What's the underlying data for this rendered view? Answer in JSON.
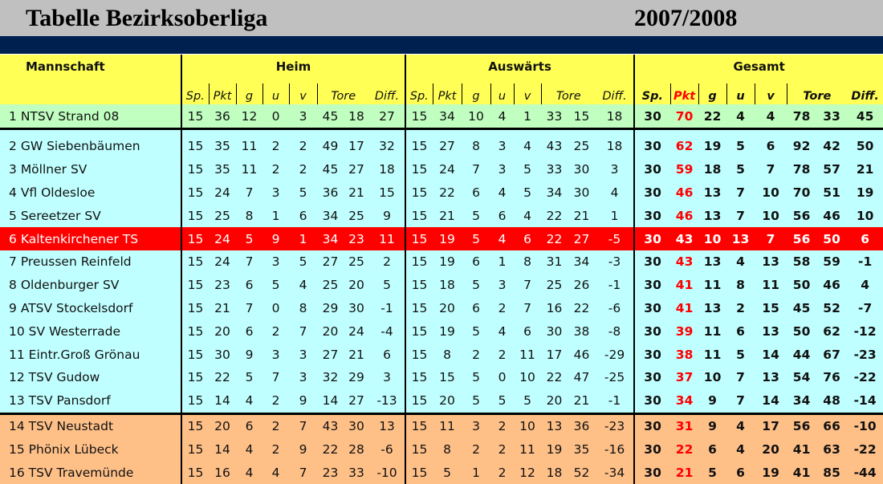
{
  "title": "Tabelle Bezirksoberliga",
  "season": "2007/2008",
  "colors": {
    "promotion": "#c0ffc0",
    "middle": "#c0ffff",
    "highlight": "#ff0000",
    "relegation": "#ffc088",
    "header": "#ffff55",
    "points": "#ff0000"
  },
  "header": {
    "team": "Mannschaft",
    "home": "Heim",
    "away": "Auswärts",
    "total": "Gesamt",
    "sub": [
      "Sp.",
      "Pkt",
      "g",
      "u",
      "v",
      "Tore",
      "Diff."
    ]
  },
  "rows": [
    {
      "rank": "1",
      "team": "NTSV Strand 08",
      "zone": "promotion",
      "home": [
        "15",
        "36",
        "12",
        "0",
        "3",
        "45",
        "18",
        "27"
      ],
      "away": [
        "15",
        "34",
        "10",
        "4",
        "1",
        "33",
        "15",
        "18"
      ],
      "total": [
        "30",
        "70",
        "22",
        "4",
        "4",
        "78",
        "33",
        "45"
      ]
    },
    {
      "rank": "2",
      "team": "GW Siebenbäumen",
      "zone": "middle",
      "home": [
        "15",
        "35",
        "11",
        "2",
        "2",
        "49",
        "17",
        "32"
      ],
      "away": [
        "15",
        "27",
        "8",
        "3",
        "4",
        "43",
        "25",
        "18"
      ],
      "total": [
        "30",
        "62",
        "19",
        "5",
        "6",
        "92",
        "42",
        "50"
      ]
    },
    {
      "rank": "3",
      "team": "Möllner SV",
      "zone": "middle",
      "home": [
        "15",
        "35",
        "11",
        "2",
        "2",
        "45",
        "27",
        "18"
      ],
      "away": [
        "15",
        "24",
        "7",
        "3",
        "5",
        "33",
        "30",
        "3"
      ],
      "total": [
        "30",
        "59",
        "18",
        "5",
        "7",
        "78",
        "57",
        "21"
      ]
    },
    {
      "rank": "4",
      "team": "Vfl Oldesloe",
      "zone": "middle",
      "home": [
        "15",
        "24",
        "7",
        "3",
        "5",
        "36",
        "21",
        "15"
      ],
      "away": [
        "15",
        "22",
        "6",
        "4",
        "5",
        "34",
        "30",
        "4"
      ],
      "total": [
        "30",
        "46",
        "13",
        "7",
        "10",
        "70",
        "51",
        "19"
      ]
    },
    {
      "rank": "5",
      "team": "Sereetzer SV",
      "zone": "middle",
      "home": [
        "15",
        "25",
        "8",
        "1",
        "6",
        "34",
        "25",
        "9"
      ],
      "away": [
        "15",
        "21",
        "5",
        "6",
        "4",
        "22",
        "21",
        "1"
      ],
      "total": [
        "30",
        "46",
        "13",
        "7",
        "10",
        "56",
        "46",
        "10"
      ]
    },
    {
      "rank": "6",
      "team": "Kaltenkirchener TS",
      "zone": "highlight",
      "home": [
        "15",
        "24",
        "5",
        "9",
        "1",
        "34",
        "23",
        "11"
      ],
      "away": [
        "15",
        "19",
        "5",
        "4",
        "6",
        "22",
        "27",
        "-5"
      ],
      "total": [
        "30",
        "43",
        "10",
        "13",
        "7",
        "56",
        "50",
        "6"
      ]
    },
    {
      "rank": "7",
      "team": "Preussen Reinfeld",
      "zone": "middle",
      "home": [
        "15",
        "24",
        "7",
        "3",
        "5",
        "27",
        "25",
        "2"
      ],
      "away": [
        "15",
        "19",
        "6",
        "1",
        "8",
        "31",
        "34",
        "-3"
      ],
      "total": [
        "30",
        "43",
        "13",
        "4",
        "13",
        "58",
        "59",
        "-1"
      ]
    },
    {
      "rank": "8",
      "team": "Oldenburger SV",
      "zone": "middle",
      "home": [
        "15",
        "23",
        "6",
        "5",
        "4",
        "25",
        "20",
        "5"
      ],
      "away": [
        "15",
        "18",
        "5",
        "3",
        "7",
        "25",
        "26",
        "-1"
      ],
      "total": [
        "30",
        "41",
        "11",
        "8",
        "11",
        "50",
        "46",
        "4"
      ]
    },
    {
      "rank": "9",
      "team": "ATSV Stockelsdorf",
      "zone": "middle",
      "home": [
        "15",
        "21",
        "7",
        "0",
        "8",
        "29",
        "30",
        "-1"
      ],
      "away": [
        "15",
        "20",
        "6",
        "2",
        "7",
        "16",
        "22",
        "-6"
      ],
      "total": [
        "30",
        "41",
        "13",
        "2",
        "15",
        "45",
        "52",
        "-7"
      ]
    },
    {
      "rank": "10",
      "team": "SV Westerrade",
      "zone": "middle",
      "home": [
        "15",
        "20",
        "6",
        "2",
        "7",
        "20",
        "24",
        "-4"
      ],
      "away": [
        "15",
        "19",
        "5",
        "4",
        "6",
        "30",
        "38",
        "-8"
      ],
      "total": [
        "30",
        "39",
        "11",
        "6",
        "13",
        "50",
        "62",
        "-12"
      ]
    },
    {
      "rank": "11",
      "team": "Eintr.Groß Grönau",
      "zone": "middle",
      "home": [
        "15",
        "30",
        "9",
        "3",
        "3",
        "27",
        "21",
        "6"
      ],
      "away": [
        "15",
        "8",
        "2",
        "2",
        "11",
        "17",
        "46",
        "-29"
      ],
      "total": [
        "30",
        "38",
        "11",
        "5",
        "14",
        "44",
        "67",
        "-23"
      ]
    },
    {
      "rank": "12",
      "team": "TSV Gudow",
      "zone": "middle",
      "home": [
        "15",
        "22",
        "5",
        "7",
        "3",
        "32",
        "29",
        "3"
      ],
      "away": [
        "15",
        "15",
        "5",
        "0",
        "10",
        "22",
        "47",
        "-25"
      ],
      "total": [
        "30",
        "37",
        "10",
        "7",
        "13",
        "54",
        "76",
        "-22"
      ]
    },
    {
      "rank": "13",
      "team": "TSV Pansdorf",
      "zone": "middle",
      "home": [
        "15",
        "14",
        "4",
        "2",
        "9",
        "14",
        "27",
        "-13"
      ],
      "away": [
        "15",
        "20",
        "5",
        "5",
        "5",
        "20",
        "21",
        "-1"
      ],
      "total": [
        "30",
        "34",
        "9",
        "7",
        "14",
        "34",
        "48",
        "-14"
      ]
    },
    {
      "rank": "14",
      "team": "TSV Neustadt",
      "zone": "relegation",
      "home": [
        "15",
        "20",
        "6",
        "2",
        "7",
        "43",
        "30",
        "13"
      ],
      "away": [
        "15",
        "11",
        "3",
        "2",
        "10",
        "13",
        "36",
        "-23"
      ],
      "total": [
        "30",
        "31",
        "9",
        "4",
        "17",
        "56",
        "66",
        "-10"
      ]
    },
    {
      "rank": "15",
      "team": "Phönix Lübeck",
      "zone": "relegation",
      "home": [
        "15",
        "14",
        "4",
        "2",
        "9",
        "22",
        "28",
        "-6"
      ],
      "away": [
        "15",
        "8",
        "2",
        "2",
        "11",
        "19",
        "35",
        "-16"
      ],
      "total": [
        "30",
        "22",
        "6",
        "4",
        "20",
        "41",
        "63",
        "-22"
      ]
    },
    {
      "rank": "16",
      "team": "TSV Travemünde",
      "zone": "relegation",
      "home": [
        "15",
        "16",
        "4",
        "4",
        "7",
        "23",
        "33",
        "-10"
      ],
      "away": [
        "15",
        "5",
        "1",
        "2",
        "12",
        "18",
        "52",
        "-34"
      ],
      "total": [
        "30",
        "21",
        "5",
        "6",
        "19",
        "41",
        "85",
        "-44"
      ]
    }
  ]
}
